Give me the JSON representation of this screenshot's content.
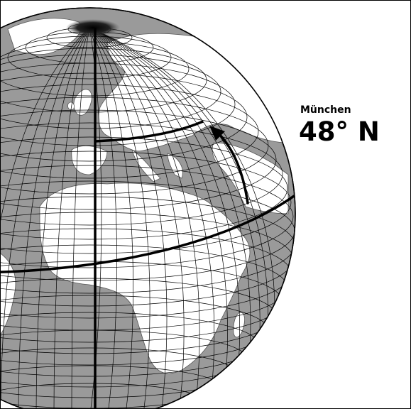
{
  "labels": {
    "city": "München",
    "latitude": "48° N"
  },
  "colors": {
    "ocean": "#9a9a9a",
    "land": "#ffffff",
    "grid": "#000000"
  }
}
